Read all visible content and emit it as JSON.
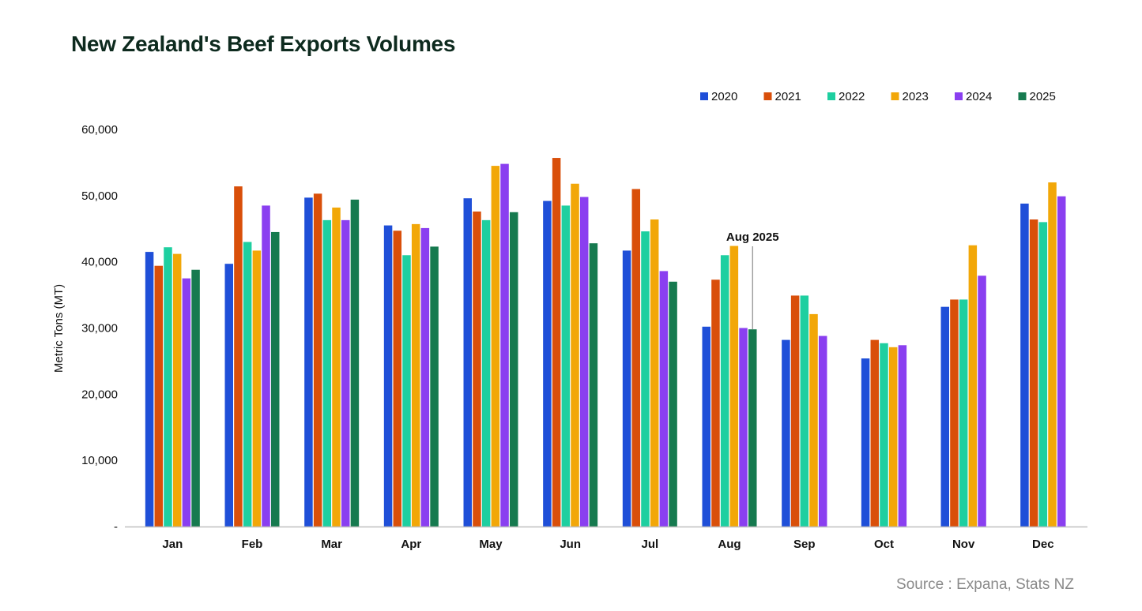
{
  "title": "New Zealand's Beef Exports Volumes",
  "source": "Source : Expana, Stats NZ",
  "colors": {
    "2020": "#1f4fd8",
    "2021": "#d94f0a",
    "2022": "#1ecfa0",
    "2023": "#f2a708",
    "2024": "#8a3ff0",
    "2025": "#167a4f",
    "axis": "#bfbfbf",
    "annotation_line": "#8a8a8a"
  },
  "chart_data": {
    "type": "bar",
    "title": "New Zealand's Beef Exports Volumes",
    "xlabel": "",
    "ylabel": "Metric Tons (MT)",
    "ylim": [
      0,
      60000
    ],
    "yticks": [
      0,
      10000,
      20000,
      30000,
      40000,
      50000,
      60000
    ],
    "ytick_labels": [
      "-",
      "10,000",
      "20,000",
      "30,000",
      "40,000",
      "50,000",
      "60,000"
    ],
    "grid": false,
    "legend": "top-right",
    "categories": [
      "Jan",
      "Feb",
      "Mar",
      "Apr",
      "May",
      "Jun",
      "Jul",
      "Aug",
      "Sep",
      "Oct",
      "Nov",
      "Dec"
    ],
    "series": [
      {
        "name": "2020",
        "values": [
          41500,
          39700,
          49700,
          45500,
          49600,
          49200,
          41700,
          30200,
          28200,
          25400,
          33200,
          48800
        ]
      },
      {
        "name": "2021",
        "values": [
          39400,
          51400,
          50300,
          44700,
          47600,
          55700,
          51000,
          37300,
          34900,
          28200,
          34300,
          46400
        ]
      },
      {
        "name": "2022",
        "values": [
          42200,
          43000,
          46300,
          41000,
          46300,
          48500,
          44600,
          41000,
          34900,
          27700,
          34300,
          46000
        ]
      },
      {
        "name": "2023",
        "values": [
          41200,
          41700,
          48200,
          45700,
          54500,
          51800,
          46400,
          42400,
          32100,
          27100,
          42500,
          52000
        ]
      },
      {
        "name": "2024",
        "values": [
          37500,
          48500,
          46300,
          45100,
          54800,
          49800,
          38600,
          30000,
          28800,
          27400,
          37900,
          49900
        ]
      },
      {
        "name": "2025",
        "values": [
          38800,
          44500,
          49400,
          42300,
          47500,
          42800,
          37000,
          29800,
          null,
          null,
          null,
          null
        ]
      }
    ],
    "annotation": {
      "label": "Aug 2025",
      "category": "Aug",
      "series": "2025"
    }
  }
}
